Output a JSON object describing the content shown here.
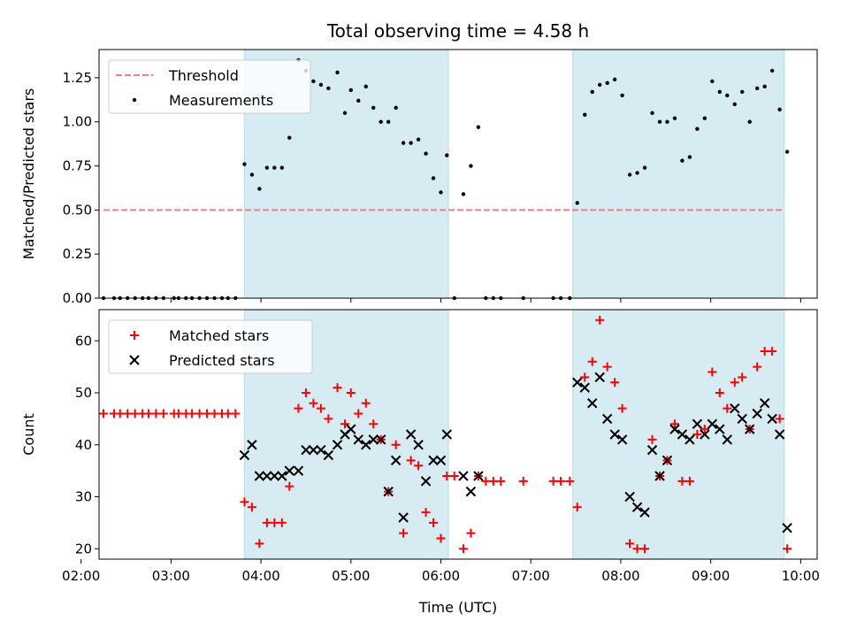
{
  "chart_data": [
    {
      "type": "scatter",
      "title": "Total observing time = 4.58 h",
      "xlabel": "",
      "ylabel": "Matched/Predicted stars",
      "xlim": [
        "02:12",
        "10:11"
      ],
      "ylim": [
        0,
        1.41
      ],
      "yticks": [
        "0.00",
        "0.25",
        "0.50",
        "0.75",
        "1.00",
        "1.25"
      ],
      "grid": false,
      "legend": "top-left",
      "shaded_intervals": [
        [
          "03:49",
          "06:05"
        ],
        [
          "07:28",
          "09:49"
        ]
      ],
      "series": [
        {
          "name": "Threshold",
          "kind": "dashed-line",
          "color": "#f08080",
          "x": [
            "02:15",
            "09:49"
          ],
          "y": [
            0.5,
            0.5
          ]
        },
        {
          "name": "Measurements",
          "kind": "dots",
          "color": "#000000",
          "points": [
            [
              "02:15",
              0
            ],
            [
              "02:22",
              0
            ],
            [
              "02:26",
              0
            ],
            [
              "02:31",
              0
            ],
            [
              "02:36",
              0
            ],
            [
              "02:41",
              0
            ],
            [
              "02:45",
              0
            ],
            [
              "02:50",
              0
            ],
            [
              "02:55",
              0
            ],
            [
              "03:02",
              0
            ],
            [
              "03:05",
              0
            ],
            [
              "03:10",
              0
            ],
            [
              "03:14",
              0
            ],
            [
              "03:19",
              0
            ],
            [
              "03:24",
              0
            ],
            [
              "03:29",
              0
            ],
            [
              "03:34",
              0
            ],
            [
              "03:38",
              0
            ],
            [
              "03:43",
              0
            ],
            [
              "03:49",
              0.76
            ],
            [
              "03:54",
              0.7
            ],
            [
              "03:59",
              0.62
            ],
            [
              "04:04",
              0.74
            ],
            [
              "04:09",
              0.74
            ],
            [
              "04:14",
              0.74
            ],
            [
              "04:19",
              0.91
            ],
            [
              "04:25",
              1.35
            ],
            [
              "04:30",
              1.29
            ],
            [
              "04:35",
              1.23
            ],
            [
              "04:40",
              1.21
            ],
            [
              "04:45",
              1.19
            ],
            [
              "04:51",
              1.28
            ],
            [
              "04:56",
              1.05
            ],
            [
              "05:00",
              1.18
            ],
            [
              "05:05",
              1.12
            ],
            [
              "05:10",
              1.2
            ],
            [
              "05:15",
              1.08
            ],
            [
              "05:20",
              1.0
            ],
            [
              "05:25",
              1.0
            ],
            [
              "05:30",
              1.08
            ],
            [
              "05:35",
              0.88
            ],
            [
              "05:40",
              0.88
            ],
            [
              "05:45",
              0.9
            ],
            [
              "05:50",
              0.82
            ],
            [
              "05:55",
              0.68
            ],
            [
              "06:00",
              0.6
            ],
            [
              "06:04",
              0.81
            ],
            [
              "06:09",
              0
            ],
            [
              "06:15",
              0.59
            ],
            [
              "06:20",
              0.75
            ],
            [
              "06:25",
              0.97
            ],
            [
              "06:30",
              0
            ],
            [
              "06:35",
              0
            ],
            [
              "06:40",
              0
            ],
            [
              "06:55",
              0
            ],
            [
              "07:15",
              0
            ],
            [
              "07:20",
              0
            ],
            [
              "07:26",
              0
            ],
            [
              "07:31",
              0.54
            ],
            [
              "07:36",
              1.04
            ],
            [
              "07:41",
              1.17
            ],
            [
              "07:46",
              1.21
            ],
            [
              "07:51",
              1.22
            ],
            [
              "07:56",
              1.24
            ],
            [
              "08:01",
              1.15
            ],
            [
              "08:06",
              0.7
            ],
            [
              "08:11",
              0.71
            ],
            [
              "08:16",
              0.74
            ],
            [
              "08:21",
              1.05
            ],
            [
              "08:26",
              1.0
            ],
            [
              "08:31",
              1.0
            ],
            [
              "08:36",
              1.02
            ],
            [
              "08:41",
              0.78
            ],
            [
              "08:46",
              0.8
            ],
            [
              "08:51",
              0.96
            ],
            [
              "08:56",
              1.02
            ],
            [
              "09:01",
              1.23
            ],
            [
              "09:06",
              1.17
            ],
            [
              "09:11",
              1.15
            ],
            [
              "09:16",
              1.1
            ],
            [
              "09:21",
              1.17
            ],
            [
              "09:26",
              1.0
            ],
            [
              "09:31",
              1.19
            ],
            [
              "09:36",
              1.2
            ],
            [
              "09:41",
              1.29
            ],
            [
              "09:46",
              1.07
            ],
            [
              "09:51",
              0.83
            ]
          ]
        }
      ]
    },
    {
      "type": "scatter",
      "title": "",
      "xlabel": "Time (UTC)",
      "ylabel": "Count",
      "xlim": [
        "02:12",
        "10:11"
      ],
      "ylim": [
        18,
        66
      ],
      "yticks": [
        "20",
        "30",
        "40",
        "50",
        "60"
      ],
      "xticks": [
        "02:00",
        "03:00",
        "04:00",
        "05:00",
        "06:00",
        "07:00",
        "08:00",
        "09:00",
        "10:00"
      ],
      "grid": false,
      "legend": "top-left",
      "shaded_intervals": [
        [
          "03:49",
          "06:05"
        ],
        [
          "07:28",
          "09:49"
        ]
      ],
      "series": [
        {
          "name": "Matched stars",
          "kind": "plus",
          "color": "#ff0000",
          "points": [
            [
              "02:15",
              46
            ],
            [
              "02:22",
              46
            ],
            [
              "02:26",
              46
            ],
            [
              "02:31",
              46
            ],
            [
              "02:36",
              46
            ],
            [
              "02:41",
              46
            ],
            [
              "02:45",
              46
            ],
            [
              "02:50",
              46
            ],
            [
              "02:55",
              46
            ],
            [
              "03:02",
              46
            ],
            [
              "03:05",
              46
            ],
            [
              "03:10",
              46
            ],
            [
              "03:14",
              46
            ],
            [
              "03:19",
              46
            ],
            [
              "03:24",
              46
            ],
            [
              "03:29",
              46
            ],
            [
              "03:34",
              46
            ],
            [
              "03:38",
              46
            ],
            [
              "03:43",
              46
            ],
            [
              "03:49",
              29
            ],
            [
              "03:54",
              28
            ],
            [
              "03:59",
              21
            ],
            [
              "04:04",
              25
            ],
            [
              "04:09",
              25
            ],
            [
              "04:14",
              25
            ],
            [
              "04:19",
              32
            ],
            [
              "04:25",
              47
            ],
            [
              "04:30",
              50
            ],
            [
              "04:35",
              48
            ],
            [
              "04:40",
              47
            ],
            [
              "04:45",
              45
            ],
            [
              "04:51",
              51
            ],
            [
              "04:56",
              44
            ],
            [
              "05:00",
              50
            ],
            [
              "05:05",
              46
            ],
            [
              "05:10",
              48
            ],
            [
              "05:15",
              44
            ],
            [
              "05:20",
              41
            ],
            [
              "05:25",
              31
            ],
            [
              "05:30",
              40
            ],
            [
              "05:35",
              23
            ],
            [
              "05:40",
              37
            ],
            [
              "05:45",
              36
            ],
            [
              "05:50",
              27
            ],
            [
              "05:55",
              25
            ],
            [
              "06:00",
              22
            ],
            [
              "06:04",
              34
            ],
            [
              "06:09",
              34
            ],
            [
              "06:15",
              20
            ],
            [
              "06:20",
              23
            ],
            [
              "06:25",
              34
            ],
            [
              "06:30",
              33
            ],
            [
              "06:35",
              33
            ],
            [
              "06:40",
              33
            ],
            [
              "06:55",
              33
            ],
            [
              "07:15",
              33
            ],
            [
              "07:20",
              33
            ],
            [
              "07:26",
              33
            ],
            [
              "07:31",
              28
            ],
            [
              "07:36",
              53
            ],
            [
              "07:41",
              56
            ],
            [
              "07:46",
              64
            ],
            [
              "07:51",
              55
            ],
            [
              "07:56",
              52
            ],
            [
              "08:01",
              47
            ],
            [
              "08:06",
              21
            ],
            [
              "08:11",
              20
            ],
            [
              "08:16",
              20
            ],
            [
              "08:21",
              41
            ],
            [
              "08:26",
              34
            ],
            [
              "08:31",
              37
            ],
            [
              "08:36",
              44
            ],
            [
              "08:41",
              33
            ],
            [
              "08:46",
              33
            ],
            [
              "08:51",
              42
            ],
            [
              "08:56",
              43
            ],
            [
              "09:01",
              54
            ],
            [
              "09:06",
              50
            ],
            [
              "09:11",
              47
            ],
            [
              "09:16",
              52
            ],
            [
              "09:21",
              53
            ],
            [
              "09:26",
              43
            ],
            [
              "09:31",
              55
            ],
            [
              "09:36",
              58
            ],
            [
              "09:41",
              58
            ],
            [
              "09:46",
              45
            ],
            [
              "09:51",
              20
            ]
          ]
        },
        {
          "name": "Predicted stars",
          "kind": "cross",
          "color": "#000000",
          "points": [
            [
              "03:49",
              38
            ],
            [
              "03:54",
              40
            ],
            [
              "03:59",
              34
            ],
            [
              "04:04",
              34
            ],
            [
              "04:09",
              34
            ],
            [
              "04:14",
              34
            ],
            [
              "04:19",
              35
            ],
            [
              "04:25",
              35
            ],
            [
              "04:30",
              39
            ],
            [
              "04:35",
              39
            ],
            [
              "04:40",
              39
            ],
            [
              "04:45",
              38
            ],
            [
              "04:51",
              40
            ],
            [
              "04:56",
              42
            ],
            [
              "05:00",
              43
            ],
            [
              "05:05",
              41
            ],
            [
              "05:10",
              40
            ],
            [
              "05:15",
              41
            ],
            [
              "05:20",
              41
            ],
            [
              "05:25",
              31
            ],
            [
              "05:30",
              37
            ],
            [
              "05:35",
              26
            ],
            [
              "05:40",
              42
            ],
            [
              "05:45",
              40
            ],
            [
              "05:50",
              33
            ],
            [
              "05:55",
              37
            ],
            [
              "06:00",
              37
            ],
            [
              "06:04",
              42
            ],
            [
              "06:15",
              34
            ],
            [
              "06:20",
              31
            ],
            [
              "06:25",
              34
            ],
            [
              "07:31",
              52
            ],
            [
              "07:36",
              51
            ],
            [
              "07:41",
              48
            ],
            [
              "07:46",
              53
            ],
            [
              "07:51",
              45
            ],
            [
              "07:56",
              42
            ],
            [
              "08:01",
              41
            ],
            [
              "08:06",
              30
            ],
            [
              "08:11",
              28
            ],
            [
              "08:16",
              27
            ],
            [
              "08:21",
              39
            ],
            [
              "08:26",
              34
            ],
            [
              "08:31",
              37
            ],
            [
              "08:36",
              43
            ],
            [
              "08:41",
              42
            ],
            [
              "08:46",
              41
            ],
            [
              "08:51",
              44
            ],
            [
              "08:56",
              42
            ],
            [
              "09:01",
              44
            ],
            [
              "09:06",
              43
            ],
            [
              "09:11",
              41
            ],
            [
              "09:16",
              47
            ],
            [
              "09:21",
              45
            ],
            [
              "09:26",
              43
            ],
            [
              "09:31",
              46
            ],
            [
              "09:36",
              48
            ],
            [
              "09:41",
              45
            ],
            [
              "09:46",
              42
            ],
            [
              "09:51",
              24
            ]
          ]
        }
      ]
    }
  ]
}
